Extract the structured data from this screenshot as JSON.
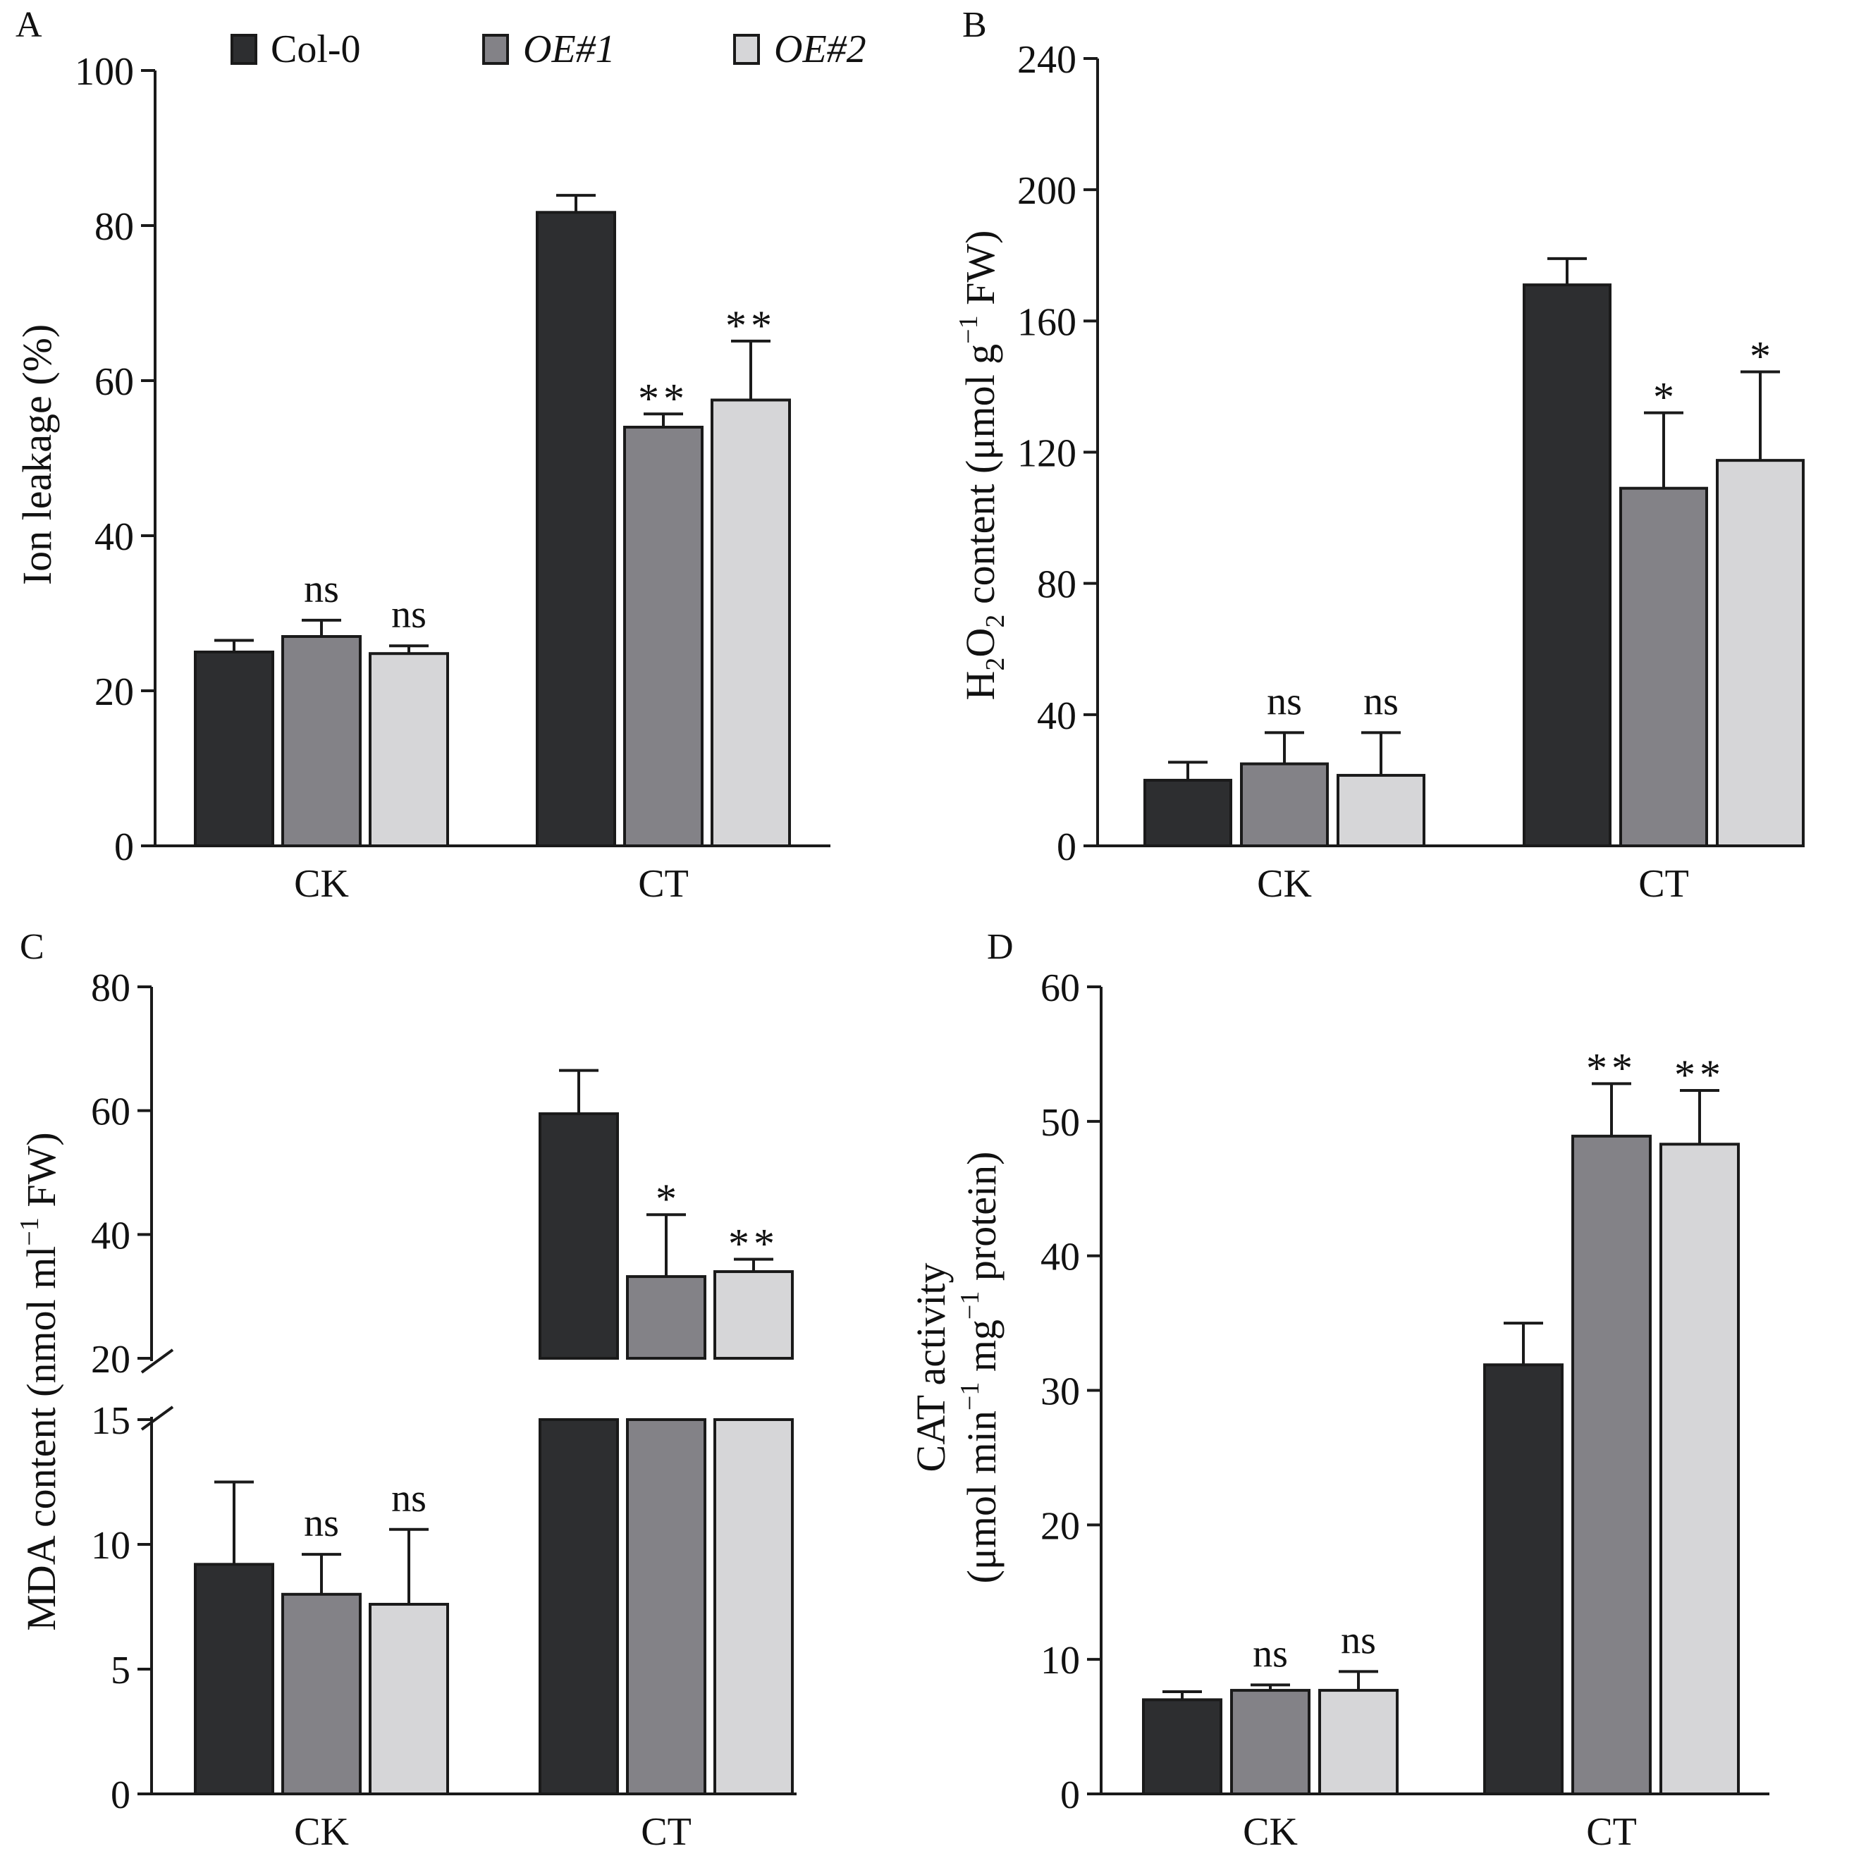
{
  "legend": [
    {
      "label": "Col-0",
      "color": "#2d2e30",
      "italic": false
    },
    {
      "label": "OE#1",
      "color": "#838287",
      "italic": true
    },
    {
      "label": "OE#2",
      "color": "#d6d6d8",
      "italic": true
    }
  ],
  "chart_data": [
    {
      "type": "bar",
      "panel": "A",
      "ylabel": "Ion leakage (%)",
      "categories": [
        "CK",
        "CT"
      ],
      "ylim": [
        0,
        100
      ],
      "yticks": [
        0,
        20,
        40,
        60,
        80,
        100
      ],
      "series": [
        {
          "name": "Col-0",
          "values": [
            25,
            81.7
          ],
          "errors": [
            1.5,
            2.2
          ],
          "sig": [
            "",
            ""
          ]
        },
        {
          "name": "OE#1",
          "values": [
            27,
            54
          ],
          "errors": [
            2.1,
            1.7
          ],
          "sig": [
            "ns",
            "**"
          ]
        },
        {
          "name": "OE#2",
          "values": [
            24.8,
            57.5
          ],
          "errors": [
            1.0,
            7.6
          ],
          "sig": [
            "ns",
            "**"
          ]
        }
      ]
    },
    {
      "type": "bar",
      "panel": "B",
      "ylabel": "H2O2 content (μmol g−1 FW)",
      "ylabel_parts": {
        "h": "H",
        "sub2a": "2",
        "o": "O",
        "sub2b": "2",
        "rest1": " content (μmol g",
        "sup": "−1",
        "rest2": " FW)"
      },
      "categories": [
        "CK",
        "CT"
      ],
      "ylim": [
        0,
        240
      ],
      "yticks": [
        0,
        40,
        80,
        120,
        160,
        200,
        240
      ],
      "series": [
        {
          "name": "Col-0",
          "values": [
            20,
            171
          ],
          "errors": [
            5.5,
            8
          ],
          "sig": [
            "",
            ""
          ]
        },
        {
          "name": "OE#1",
          "values": [
            25,
            109
          ],
          "errors": [
            9.5,
            23
          ],
          "sig": [
            "ns",
            "*"
          ]
        },
        {
          "name": "OE#2",
          "values": [
            21.5,
            117.5
          ],
          "errors": [
            13,
            27
          ],
          "sig": [
            "ns",
            "*"
          ]
        }
      ]
    },
    {
      "type": "bar",
      "panel": "C",
      "ylabel": "MDA content (nmol ml−1 FW)",
      "ylabel_parts": {
        "rest1": "MDA content (nmol ml",
        "sup": "−1",
        "rest2": " FW)"
      },
      "categories": [
        "CK",
        "CT"
      ],
      "broken_axis": {
        "lower": [
          0,
          15
        ],
        "upper": [
          20,
          80
        ]
      },
      "yticks": [
        0,
        5,
        10,
        15,
        20,
        40,
        60,
        80
      ],
      "series": [
        {
          "name": "Col-0",
          "values": [
            9.2,
            59.5
          ],
          "errors": [
            3.3,
            7
          ],
          "sig": [
            "",
            ""
          ]
        },
        {
          "name": "OE#1",
          "values": [
            8.0,
            33.2
          ],
          "errors": [
            1.6,
            10
          ],
          "sig": [
            "ns",
            "*"
          ]
        },
        {
          "name": "OE#2",
          "values": [
            7.6,
            34
          ],
          "errors": [
            3.0,
            2
          ],
          "sig": [
            "ns",
            "**"
          ]
        }
      ]
    },
    {
      "type": "bar",
      "panel": "D",
      "ylabel_line1": "CAT activity",
      "ylabel_parts": {
        "rest1": "(μmol min",
        "sup1": "−1",
        "mid": " mg",
        "sup2": "−1",
        "rest2": " protein)"
      },
      "ylabel": "CAT activity (μmol min−1 mg−1 protein)",
      "categories": [
        "CK",
        "CT"
      ],
      "ylim": [
        0,
        60
      ],
      "yticks": [
        0,
        10,
        20,
        30,
        40,
        50,
        60
      ],
      "series": [
        {
          "name": "Col-0",
          "values": [
            7,
            31.9
          ],
          "errors": [
            0.6,
            3.1
          ],
          "sig": [
            "",
            ""
          ]
        },
        {
          "name": "OE#1",
          "values": [
            7.7,
            48.9
          ],
          "errors": [
            0.4,
            3.9
          ],
          "sig": [
            "ns",
            "**"
          ]
        },
        {
          "name": "OE#2",
          "values": [
            7.7,
            48.3
          ],
          "errors": [
            1.4,
            4.0
          ],
          "sig": [
            "ns",
            "**"
          ]
        }
      ]
    }
  ]
}
